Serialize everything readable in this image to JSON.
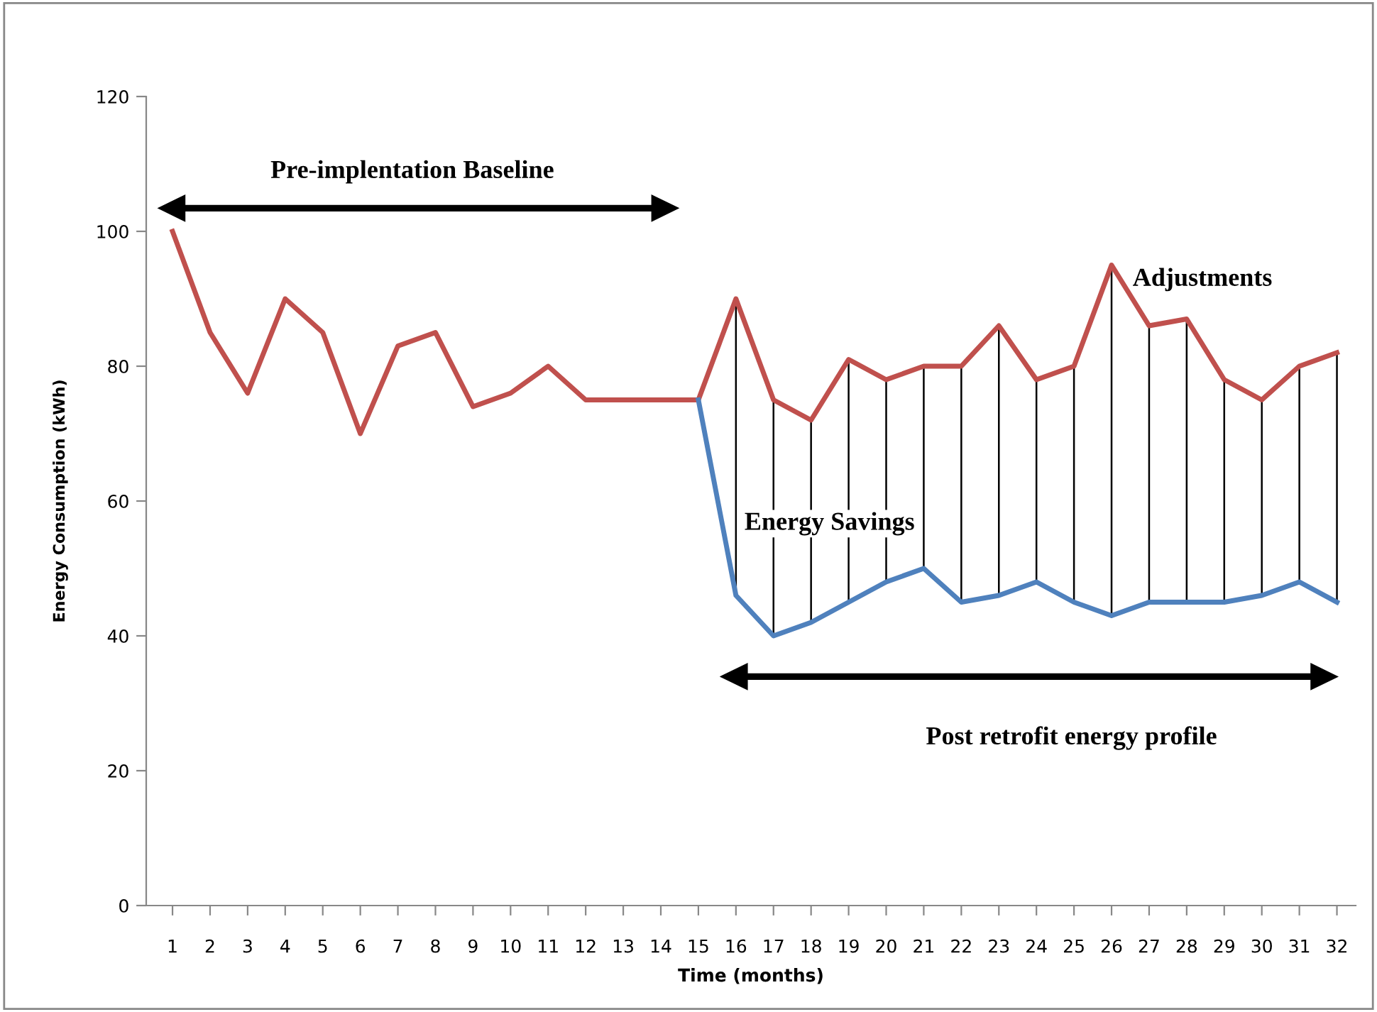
{
  "chart_data": {
    "type": "line",
    "xlabel": "Time (months)",
    "ylabel": "Energy Consumption (kWh)",
    "categories": [
      "1",
      "2",
      "3",
      "4",
      "5",
      "6",
      "7",
      "8",
      "9",
      "10",
      "11",
      "12",
      "13",
      "14",
      "15",
      "16",
      "17",
      "18",
      "19",
      "20",
      "21",
      "22",
      "23",
      "24",
      "25",
      "26",
      "27",
      "28",
      "29",
      "30",
      "31",
      "32"
    ],
    "series": [
      {
        "color": "#c0504d",
        "values": [
          100,
          85,
          76,
          90,
          85,
          70,
          83,
          85,
          74,
          76,
          80,
          75,
          75,
          75,
          75,
          90,
          75,
          72,
          81,
          78,
          80,
          80,
          86,
          78,
          80,
          95,
          86,
          87,
          78,
          75,
          80,
          82
        ]
      },
      {
        "color": "#4f81bd",
        "values": [
          null,
          null,
          null,
          null,
          null,
          null,
          null,
          null,
          null,
          null,
          null,
          null,
          null,
          null,
          75,
          46,
          40,
          42,
          45,
          48,
          50,
          45,
          46,
          48,
          45,
          43,
          45,
          45,
          45,
          46,
          48,
          45
        ]
      }
    ],
    "ylim": [
      0,
      120
    ],
    "yticks": [
      0,
      20,
      40,
      60,
      80,
      100,
      120
    ],
    "grid": false,
    "legend": false,
    "marker": "none",
    "line_style": "solid",
    "annotations": [
      "Pre-implentation Baseline",
      {
        "text": "Adjustments",
        "x": "28",
        "y": 87
      },
      "Energy Savings",
      "Post retrofit energy profile"
    ]
  }
}
